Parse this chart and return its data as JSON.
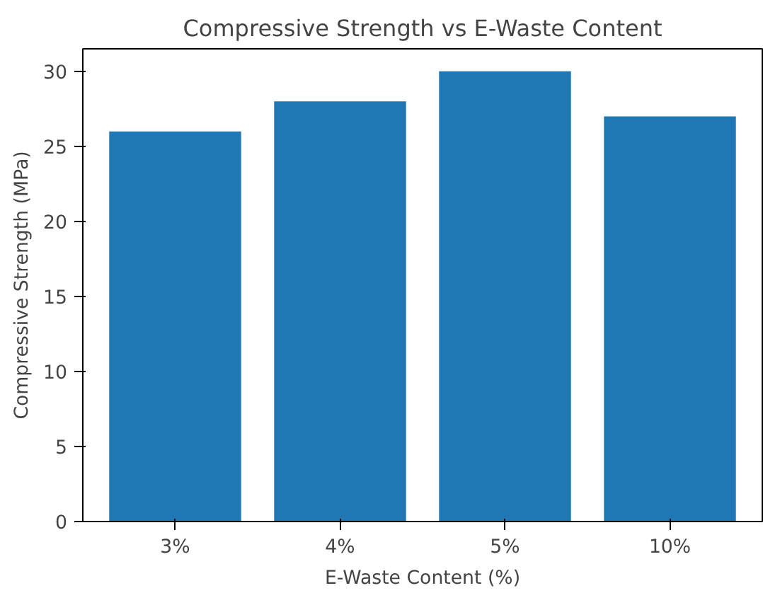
{
  "chart_data": {
    "type": "bar",
    "title": "Compressive Strength vs E-Waste Content",
    "xlabel": "E-Waste Content (%)",
    "ylabel": "Compressive Strength (MPa)",
    "categories": [
      "3%",
      "4%",
      "5%",
      "10%"
    ],
    "values": [
      26,
      28,
      30,
      27
    ],
    "color": "#1f77b4",
    "ylim": [
      0,
      31.5
    ],
    "yticks": [
      0,
      5,
      10,
      15,
      20,
      25,
      30
    ],
    "grid": false
  }
}
